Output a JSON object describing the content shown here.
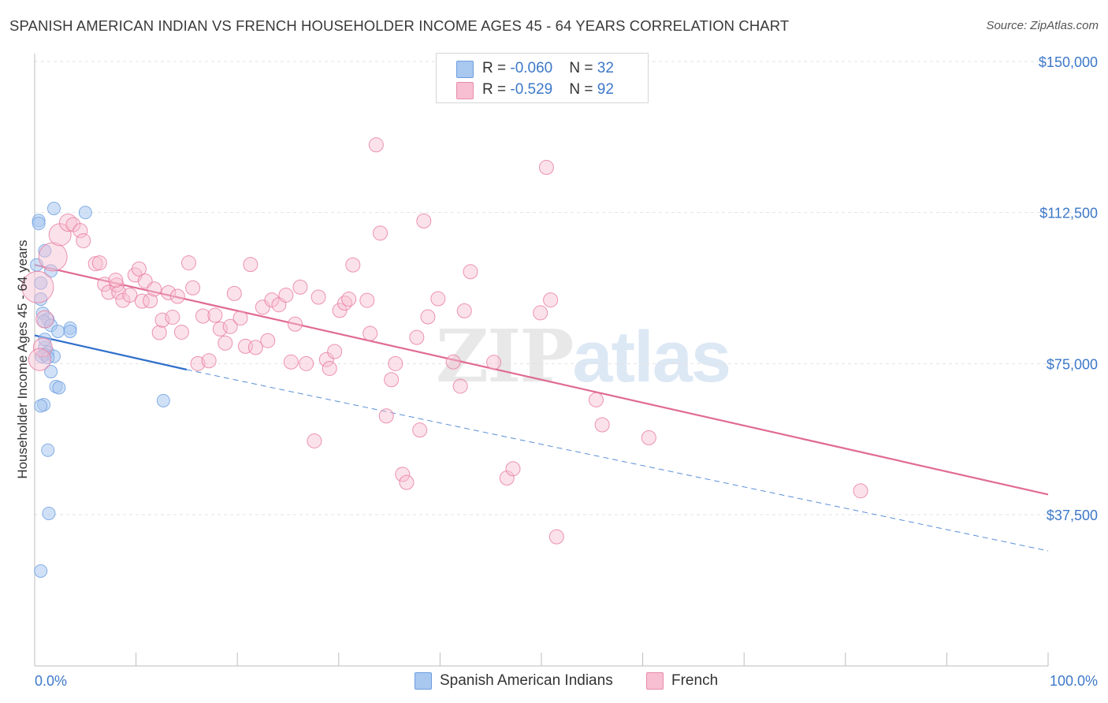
{
  "title": "SPANISH AMERICAN INDIAN VS FRENCH HOUSEHOLDER INCOME AGES 45 - 64 YEARS CORRELATION CHART",
  "source": "Source: ZipAtlas.com",
  "watermark": {
    "part1": "ZIP",
    "part2": "atlas"
  },
  "legend": {
    "rows": [
      {
        "r_label": "R = ",
        "r_value": "-0.060",
        "n_label": "N = ",
        "n_value": "32",
        "color": "#a9c8f0",
        "border": "#6c9ee0"
      },
      {
        "r_label": "R = ",
        "r_value": "-0.529",
        "n_label": "N = ",
        "n_value": "92",
        "color": "#f7bfd1",
        "border": "#e88aaa"
      }
    ]
  },
  "bottom_legend": [
    {
      "label": "Spanish American Indians",
      "color": "#a9c8f0",
      "border": "#6c9ee0"
    },
    {
      "label": "French",
      "color": "#f7bfd1",
      "border": "#e88aaa"
    }
  ],
  "chart_data": {
    "type": "scatter",
    "title": "SPANISH AMERICAN INDIAN VS FRENCH HOUSEHOLDER INCOME AGES 45 - 64 YEARS CORRELATION CHART",
    "xlabel": "",
    "ylabel": "Householder Income Ages 45 - 64 years",
    "x_tick_labels": {
      "left": "0.0%",
      "right": "100.0%"
    },
    "xlim": [
      0,
      100
    ],
    "ylim": [
      0,
      156000
    ],
    "y_ticks": [
      {
        "value": 37500,
        "label": "$37,500"
      },
      {
        "value": 75000,
        "label": "$75,000"
      },
      {
        "value": 112500,
        "label": "$112,500"
      },
      {
        "value": 150000,
        "label": "$150,000"
      }
    ],
    "grid": "horizontal dashed",
    "series": [
      {
        "name": "Spanish American Indians",
        "color": "#6c9ee0",
        "fill": "#a9c8f0",
        "trend": {
          "x0": 0,
          "y0": 82000,
          "x1": 15,
          "y1": 73500,
          "dashed_to_x": 100,
          "dashed_to_y": 28500
        },
        "points": [
          [
            1.9,
            113500,
            8
          ],
          [
            5.0,
            112500,
            8
          ],
          [
            0.4,
            110500,
            8
          ],
          [
            0.4,
            109800,
            8
          ],
          [
            1.0,
            103000,
            8
          ],
          [
            1.6,
            98000,
            8
          ],
          [
            0.2,
            99500,
            8
          ],
          [
            0.6,
            95000,
            8
          ],
          [
            0.6,
            91000,
            8
          ],
          [
            0.8,
            87500,
            8
          ],
          [
            1.3,
            86000,
            8
          ],
          [
            0.9,
            85500,
            8
          ],
          [
            1.6,
            84500,
            8
          ],
          [
            3.5,
            83800,
            8
          ],
          [
            2.3,
            83000,
            8
          ],
          [
            3.5,
            83000,
            8
          ],
          [
            1.0,
            79000,
            8
          ],
          [
            1.3,
            77800,
            8
          ],
          [
            1.0,
            77200,
            8
          ],
          [
            1.9,
            76800,
            8
          ],
          [
            0.7,
            76700,
            8
          ],
          [
            1.3,
            76500,
            8
          ],
          [
            1.6,
            73000,
            8
          ],
          [
            2.1,
            69300,
            8
          ],
          [
            2.4,
            69000,
            8
          ],
          [
            12.7,
            65800,
            8
          ],
          [
            0.9,
            64800,
            8
          ],
          [
            0.6,
            64500,
            8
          ],
          [
            1.3,
            53500,
            8
          ],
          [
            1.4,
            37800,
            8
          ],
          [
            0.6,
            23500,
            8
          ],
          [
            1.0,
            81000,
            8
          ]
        ]
      },
      {
        "name": "French",
        "color": "#e8799f",
        "fill": "#f7bfd1",
        "trend": {
          "x0": 0,
          "y0": 99500,
          "x1": 100,
          "y1": 42500
        },
        "points": [
          [
            0.3,
            94000,
            20
          ],
          [
            1.8,
            101500,
            18
          ],
          [
            2.5,
            107000,
            14
          ],
          [
            3.3,
            110000,
            11
          ],
          [
            3.8,
            109500,
            9
          ],
          [
            4.5,
            108000,
            9
          ],
          [
            4.8,
            105500,
            9
          ],
          [
            6.0,
            99800,
            9
          ],
          [
            6.4,
            100000,
            9
          ],
          [
            6.9,
            94700,
            9
          ],
          [
            7.3,
            92700,
            9
          ],
          [
            8.1,
            94500,
            9
          ],
          [
            8.3,
            92700,
            9
          ],
          [
            8.0,
            95700,
            9
          ],
          [
            8.7,
            90700,
            9
          ],
          [
            9.4,
            92000,
            9
          ],
          [
            9.9,
            97000,
            9
          ],
          [
            10.3,
            98500,
            9
          ],
          [
            10.6,
            90500,
            9
          ],
          [
            10.9,
            95500,
            9
          ],
          [
            11.4,
            90600,
            9
          ],
          [
            11.8,
            93500,
            9
          ],
          [
            12.3,
            82700,
            9
          ],
          [
            12.6,
            85800,
            9
          ],
          [
            13.2,
            92600,
            9
          ],
          [
            13.6,
            86500,
            9
          ],
          [
            14.1,
            91700,
            9
          ],
          [
            14.5,
            82800,
            9
          ],
          [
            15.2,
            100000,
            9
          ],
          [
            15.6,
            93800,
            9
          ],
          [
            16.1,
            75000,
            9
          ],
          [
            16.6,
            86800,
            9
          ],
          [
            17.2,
            75700,
            9
          ],
          [
            17.8,
            87000,
            9
          ],
          [
            18.3,
            83600,
            9
          ],
          [
            18.8,
            80100,
            9
          ],
          [
            19.3,
            84200,
            9
          ],
          [
            19.7,
            92400,
            9
          ],
          [
            20.3,
            86300,
            9
          ],
          [
            20.8,
            79300,
            9
          ],
          [
            21.3,
            99600,
            9
          ],
          [
            21.8,
            79000,
            9
          ],
          [
            22.5,
            89000,
            9
          ],
          [
            23.0,
            80700,
            9
          ],
          [
            23.4,
            90800,
            9
          ],
          [
            24.1,
            89600,
            9
          ],
          [
            24.8,
            92000,
            9
          ],
          [
            25.3,
            75400,
            9
          ],
          [
            25.7,
            84800,
            9
          ],
          [
            26.2,
            94000,
            9
          ],
          [
            26.8,
            75000,
            9
          ],
          [
            27.6,
            55800,
            9
          ],
          [
            28.0,
            91500,
            9
          ],
          [
            28.8,
            76000,
            9
          ],
          [
            29.1,
            73800,
            9
          ],
          [
            29.6,
            78000,
            9
          ],
          [
            30.1,
            88200,
            9
          ],
          [
            30.6,
            90000,
            9
          ],
          [
            31.0,
            91000,
            9
          ],
          [
            31.4,
            99500,
            9
          ],
          [
            32.8,
            90700,
            9
          ],
          [
            33.1,
            82500,
            9
          ],
          [
            33.7,
            129300,
            9
          ],
          [
            34.1,
            107400,
            9
          ],
          [
            34.7,
            62000,
            9
          ],
          [
            35.2,
            71000,
            9
          ],
          [
            35.6,
            75000,
            9
          ],
          [
            36.3,
            47500,
            9
          ],
          [
            36.7,
            45500,
            9
          ],
          [
            37.7,
            81500,
            9
          ],
          [
            38.0,
            58500,
            9
          ],
          [
            38.4,
            110400,
            9
          ],
          [
            38.8,
            86600,
            9
          ],
          [
            39.8,
            91100,
            9
          ],
          [
            41.3,
            75400,
            9
          ],
          [
            42.0,
            69400,
            9
          ],
          [
            42.4,
            88100,
            9
          ],
          [
            43.0,
            97800,
            9
          ],
          [
            45.3,
            75300,
            9
          ],
          [
            46.6,
            46600,
            9
          ],
          [
            47.2,
            48900,
            9
          ],
          [
            49.9,
            87600,
            9
          ],
          [
            50.9,
            90800,
            9
          ],
          [
            50.5,
            123700,
            9
          ],
          [
            51.5,
            32000,
            9
          ],
          [
            55.4,
            66000,
            9
          ],
          [
            56.0,
            59800,
            9
          ],
          [
            60.6,
            56600,
            9
          ],
          [
            81.5,
            43400,
            9
          ],
          [
            0.8,
            79000,
            12
          ],
          [
            0.5,
            76000,
            14
          ],
          [
            1.0,
            86000,
            11
          ]
        ]
      }
    ]
  }
}
